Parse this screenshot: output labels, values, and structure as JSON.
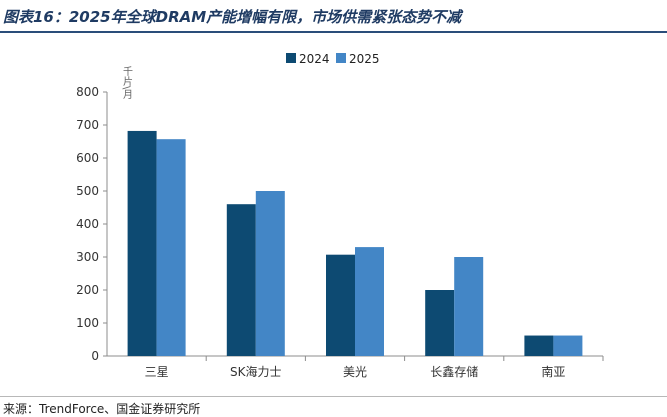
{
  "title": "图表16：2025年全球DRAM产能增幅有限，市场供需紧张态势不减",
  "source": "来源：TrendForce、国金证券研究所",
  "chart_data": {
    "type": "bar",
    "unit_label": "千片\\月",
    "categories": [
      "三星",
      "SK海力士",
      "美光",
      "长鑫存储",
      "南亚"
    ],
    "series": [
      {
        "name": "2024",
        "color": "#0d4a72",
        "values": [
          682,
          460,
          307,
          200,
          62
        ]
      },
      {
        "name": "2025",
        "color": "#4386c6",
        "values": [
          657,
          500,
          330,
          300,
          62
        ]
      }
    ],
    "ylim": [
      0,
      800
    ],
    "yticks": [
      0,
      100,
      200,
      300,
      400,
      500,
      600,
      700,
      800
    ],
    "grid": false,
    "legend_position": "top-center"
  }
}
